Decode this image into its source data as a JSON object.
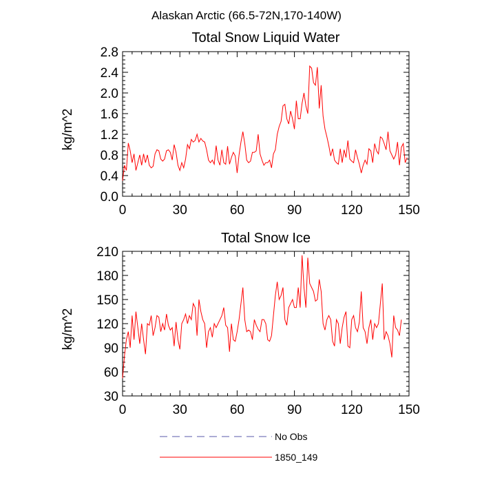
{
  "figure_title": "Alaskan Arctic (66.5-72N,170-140W)",
  "legend": [
    {
      "label": "No Obs",
      "color": "#5a5aa8",
      "dashed": true
    },
    {
      "label": "1850_149",
      "color": "#ff0000",
      "dashed": false
    }
  ],
  "chart_data": [
    {
      "type": "line",
      "title": "Total Snow Liquid Water",
      "xlabel": "",
      "ylabel": "kg/m^2",
      "xlim": [
        0,
        150
      ],
      "ylim": [
        0.0,
        2.8
      ],
      "xticks": [
        0,
        30,
        60,
        90,
        120,
        150
      ],
      "yticks": [
        0.0,
        0.4,
        0.8,
        1.2,
        1.6,
        2.0,
        2.4,
        2.8
      ],
      "ytick_labels": [
        "0.0",
        "0.4",
        "0.8",
        "1.2",
        "1.6",
        "2.0",
        "2.4",
        "2.8"
      ],
      "series": [
        {
          "name": "1850_149",
          "color": "#ff0000",
          "values": [
            0.3,
            0.6,
            0.5,
            1.03,
            0.88,
            0.65,
            0.82,
            0.5,
            0.65,
            0.8,
            0.6,
            0.82,
            0.65,
            0.8,
            0.6,
            0.55,
            0.58,
            0.82,
            0.9,
            0.88,
            0.72,
            0.68,
            0.72,
            0.88,
            0.9,
            0.85,
            0.7,
            1.0,
            0.85,
            0.6,
            0.5,
            0.65,
            0.55,
            0.72,
            1.0,
            0.92,
            1.1,
            1.05,
            1.08,
            1.2,
            1.05,
            1.12,
            1.07,
            1.05,
            0.9,
            0.7,
            0.65,
            0.7,
            0.62,
            0.98,
            0.7,
            0.6,
            0.9,
            0.65,
            0.62,
            0.97,
            0.62,
            0.75,
            0.85,
            0.78,
            0.45,
            0.8,
            1.05,
            1.25,
            1.02,
            0.7,
            0.65,
            0.68,
            0.85,
            0.85,
            0.88,
            1.2,
            0.82,
            0.7,
            0.6,
            0.65,
            0.65,
            0.7,
            0.55,
            0.82,
            0.9,
            1.2,
            1.35,
            1.45,
            1.75,
            1.78,
            1.5,
            1.4,
            1.65,
            1.5,
            1.3,
            1.85,
            1.5,
            1.5,
            1.8,
            2.0,
            1.75,
            1.6,
            2.52,
            2.48,
            2.2,
            2.15,
            2.5,
            1.7,
            2.15,
            1.55,
            1.3,
            1.15,
            0.98,
            0.78,
            0.92,
            0.7,
            0.65,
            0.62,
            0.92,
            0.65,
            0.9,
            0.75,
            1.08,
            0.72,
            0.68,
            0.65,
            0.9,
            0.75,
            0.62,
            0.45,
            0.6,
            0.7,
            0.62,
            0.92,
            0.88,
            0.65,
            1.02,
            0.88,
            0.82,
            1.15,
            1.12,
            1.02,
            0.9,
            1.25,
            0.88,
            0.8,
            0.72,
            0.8,
            1.05,
            0.6,
            0.95,
            1.02,
            0.65,
            0.75
          ]
        }
      ]
    },
    {
      "type": "line",
      "title": "Total Snow Ice",
      "xlabel": "",
      "ylabel": "kg/m^2",
      "xlim": [
        0,
        150
      ],
      "ylim": [
        30,
        210
      ],
      "xticks": [
        0,
        30,
        60,
        90,
        120,
        150
      ],
      "yticks": [
        30,
        60,
        90,
        120,
        150,
        180,
        210
      ],
      "ytick_labels": [
        "30",
        "60",
        "90",
        "120",
        "150",
        "180",
        "210"
      ],
      "series": [
        {
          "name": "1850_149",
          "color": "#ff0000",
          "values": [
            52,
            80,
            100,
            110,
            90,
            130,
            100,
            135,
            115,
            95,
            120,
            100,
            82,
            120,
            118,
            130,
            105,
            115,
            130,
            128,
            110,
            120,
            112,
            132,
            118,
            112,
            115,
            92,
            122,
            100,
            88,
            120,
            125,
            132,
            120,
            130,
            125,
            145,
            140,
            105,
            150,
            135,
            125,
            120,
            90,
            110,
            115,
            103,
            120,
            115,
            120,
            125,
            130,
            140,
            118,
            115,
            85,
            120,
            100,
            98,
            110,
            125,
            145,
            165,
            125,
            110,
            112,
            110,
            100,
            125,
            118,
            113,
            110,
            125,
            125,
            120,
            100,
            98,
            105,
            130,
            155,
            172,
            150,
            155,
            165,
            125,
            118,
            140,
            145,
            150,
            140,
            140,
            165,
            140,
            205,
            165,
            140,
            202,
            170,
            165,
            160,
            148,
            150,
            175,
            160,
            120,
            112,
            125,
            130,
            125,
            98,
            92,
            125,
            120,
            95,
            115,
            128,
            135,
            92,
            90,
            125,
            130,
            115,
            110,
            122,
            160,
            115,
            110,
            95,
            115,
            125,
            100,
            120,
            115,
            120,
            145,
            170,
            100,
            110,
            105,
            95,
            78,
            130,
            115,
            112,
            105,
            125
          ]
        }
      ]
    }
  ]
}
